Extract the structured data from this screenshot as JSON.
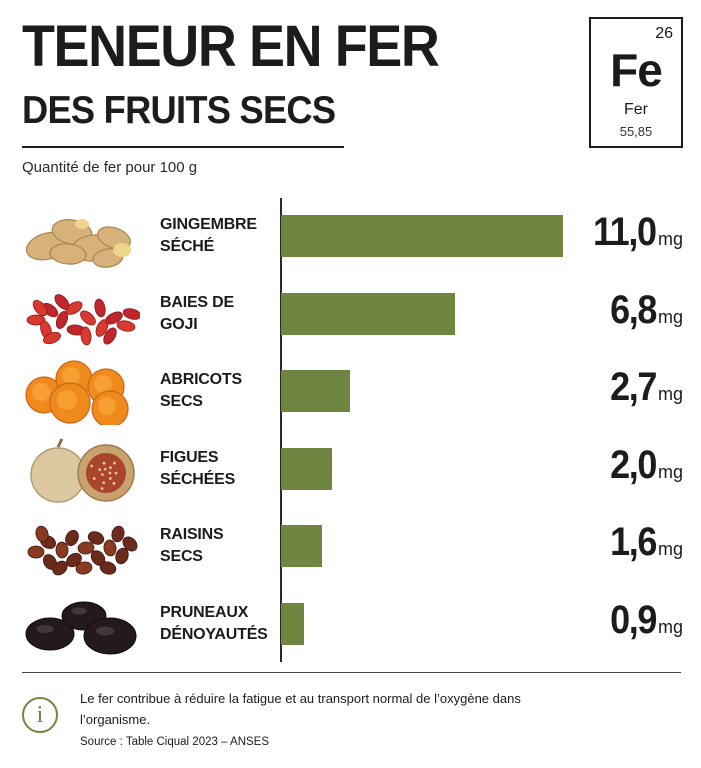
{
  "header": {
    "title_line1": "TENEUR EN FER",
    "title_line2": "DES FRUITS SECS",
    "subtitle": "Quantité de fer pour 100 g"
  },
  "element_card": {
    "number": "26",
    "symbol": "Fe",
    "name": "Fer",
    "mass": "55,85"
  },
  "chart_data": {
    "type": "bar",
    "orientation": "horizontal",
    "title": "TENEUR EN FER DES FRUITS SECS",
    "subtitle": "Quantité de fer pour 100 g",
    "categories": [
      [
        "GINGEMBRE",
        "SÉCHÉ"
      ],
      [
        "BAIES DE",
        "GOJI"
      ],
      [
        "ABRICOTS",
        "SECS"
      ],
      [
        "FIGUES",
        "SÉCHÉES"
      ],
      [
        "RAISINS",
        "SECS"
      ],
      [
        "PRUNEAUX",
        "DÉNOYAUTÉS"
      ]
    ],
    "values": [
      11.0,
      6.8,
      2.7,
      2.0,
      1.6,
      0.9
    ],
    "value_labels": [
      "11,0",
      "6,8",
      "2,7",
      "2,0",
      "1,6",
      "0,9"
    ],
    "unit": "mg",
    "icons": [
      "dried-ginger",
      "goji-berries",
      "dried-apricots",
      "dried-figs",
      "raisins",
      "prunes"
    ],
    "bar_color": "#6f8641",
    "xlim": [
      0,
      11.0
    ],
    "grid": false,
    "legend": "none"
  },
  "footer": {
    "note": "Le fer contribue à réduire la fatigue et au transport normal de l’oxygène dans l’organisme.",
    "source": "Source : Table Ciqual 2023 – ANSES"
  },
  "colors": {
    "accent_green": "#6f8641",
    "text": "#1c1c1c"
  }
}
